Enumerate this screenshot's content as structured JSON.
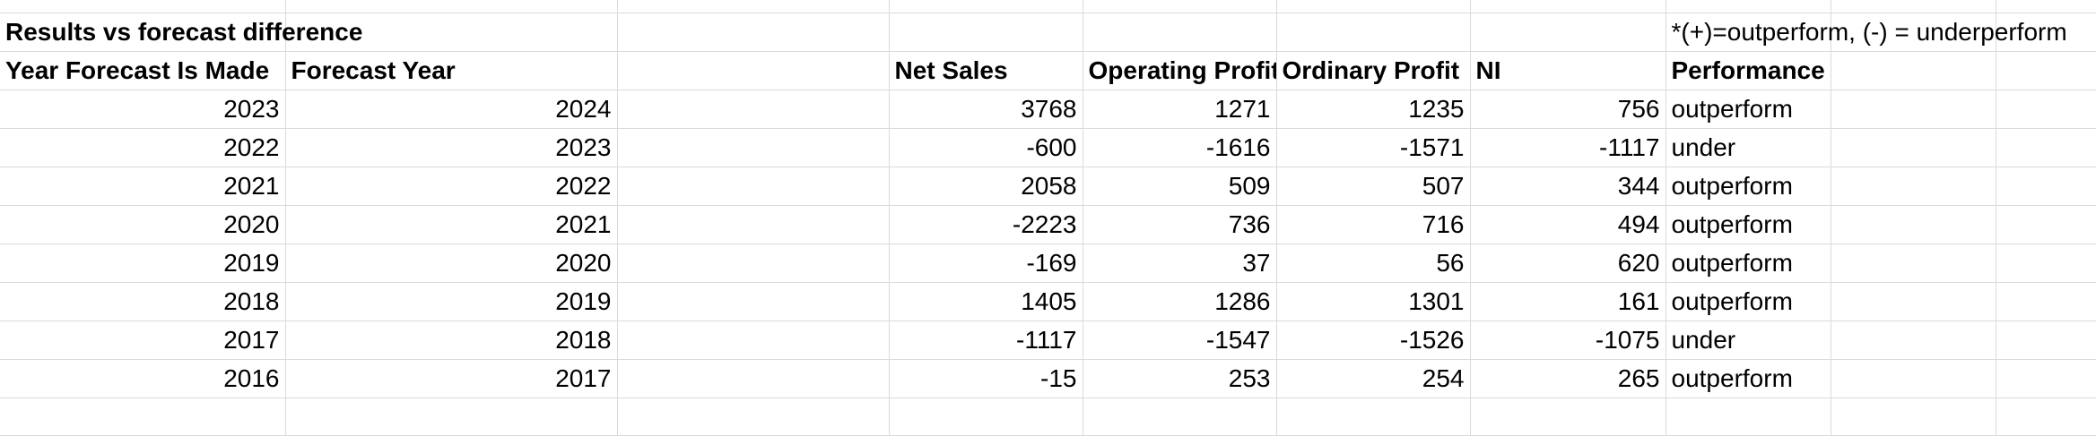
{
  "sheet": {
    "title": "Results vs forecast difference",
    "note": "*(+)=outperform, (-) = underperform",
    "headers": {
      "year_made": "Year Forecast Is Made",
      "forecast_year": "Forecast Year",
      "net_sales": "Net Sales",
      "operating_profit": "Operating Profit",
      "ordinary_profit": "Ordinary Profit",
      "ni": "NI",
      "performance": "Performance"
    },
    "rows": [
      {
        "year_made": "2023",
        "forecast_year": "2024",
        "net_sales": "3768",
        "operating_profit": "1271",
        "ordinary_profit": "1235",
        "ni": "756",
        "performance": "outperform"
      },
      {
        "year_made": "2022",
        "forecast_year": "2023",
        "net_sales": "-600",
        "operating_profit": "-1616",
        "ordinary_profit": "-1571",
        "ni": "-1117",
        "performance": "under"
      },
      {
        "year_made": "2021",
        "forecast_year": "2022",
        "net_sales": "2058",
        "operating_profit": "509",
        "ordinary_profit": "507",
        "ni": "344",
        "performance": "outperform"
      },
      {
        "year_made": "2020",
        "forecast_year": "2021",
        "net_sales": "-2223",
        "operating_profit": "736",
        "ordinary_profit": "716",
        "ni": "494",
        "performance": "outperform"
      },
      {
        "year_made": "2019",
        "forecast_year": "2020",
        "net_sales": "-169",
        "operating_profit": "37",
        "ordinary_profit": "56",
        "ni": "620",
        "performance": "outperform"
      },
      {
        "year_made": "2018",
        "forecast_year": "2019",
        "net_sales": "1405",
        "operating_profit": "1286",
        "ordinary_profit": "1301",
        "ni": "161",
        "performance": "outperform"
      },
      {
        "year_made": "2017",
        "forecast_year": "2018",
        "net_sales": "-1117",
        "operating_profit": "-1547",
        "ordinary_profit": "-1526",
        "ni": "-1075",
        "performance": "under"
      },
      {
        "year_made": "2016",
        "forecast_year": "2017",
        "net_sales": "-15",
        "operating_profit": "253",
        "ordinary_profit": "254",
        "ni": "265",
        "performance": "outperform"
      }
    ]
  }
}
